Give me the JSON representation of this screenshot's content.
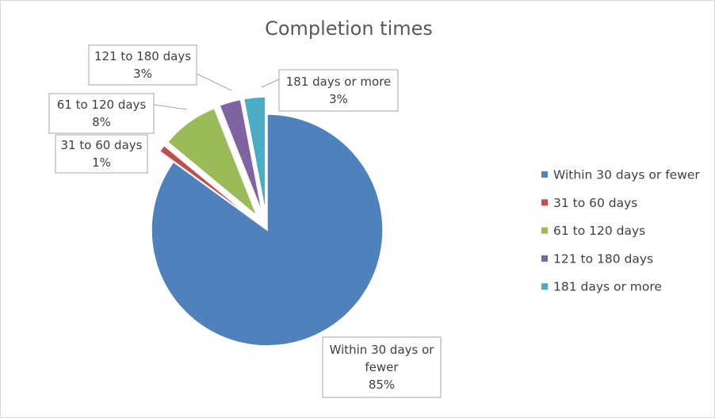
{
  "chart_data": {
    "type": "pie",
    "title": "Completion times",
    "categories": [
      "Within 30 days or fewer",
      "31 to 60 days",
      "61 to 120 days",
      "121 to 180 days",
      "181 days or more"
    ],
    "values": [
      85,
      1,
      8,
      3,
      3
    ],
    "data_labels": [
      {
        "lines": [
          "Within 30 days or",
          "fewer"
        ],
        "percent": "85%"
      },
      {
        "lines": [
          "31 to 60 days"
        ],
        "percent": "1%"
      },
      {
        "lines": [
          "61 to 120 days"
        ],
        "percent": "8%"
      },
      {
        "lines": [
          "121 to 180 days"
        ],
        "percent": "3%"
      },
      {
        "lines": [
          "181 days or more"
        ],
        "percent": "3%"
      }
    ],
    "colors": [
      "#4f81bd",
      "#c0504d",
      "#9bbb59",
      "#8064a2",
      "#4bacc6"
    ],
    "exploded": true,
    "legend_position": "right"
  }
}
